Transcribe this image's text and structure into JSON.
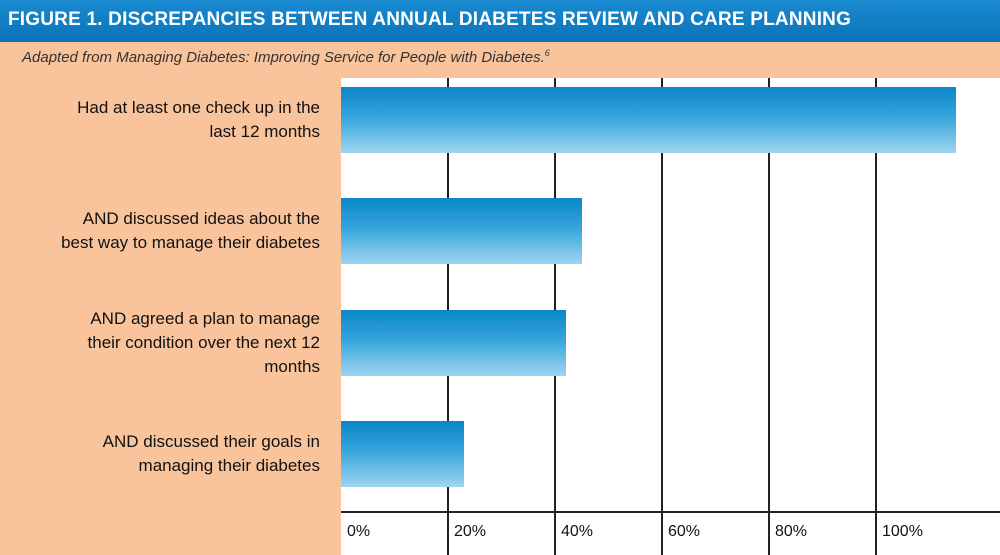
{
  "header": {
    "title": "FIGURE 1. DISCREPANCIES BETWEEN ANNUAL DIABETES REVIEW AND CARE PLANNING"
  },
  "subtitle": {
    "text": "Adapted from Managing Diabetes: Improving Service for People with Diabetes.",
    "footnote": "6"
  },
  "colors": {
    "header": "#0a73b9",
    "background": "#f9c49c",
    "bar": "#1a95d3"
  },
  "chart_data": {
    "type": "bar",
    "orientation": "horizontal",
    "categories": [
      "Had at least one check up in the last 12 months",
      "AND discussed ideas about the best way to manage their diabetes",
      "AND agreed a plan to manage their condition over the next 12 months",
      "AND discussed their goals in managing their diabetes"
    ],
    "values": [
      115,
      45,
      42,
      23
    ],
    "xlim": [
      0,
      120
    ],
    "xticks": [
      "0%",
      "20%",
      "40%",
      "60%",
      "80%",
      "100%"
    ],
    "grid": true
  }
}
